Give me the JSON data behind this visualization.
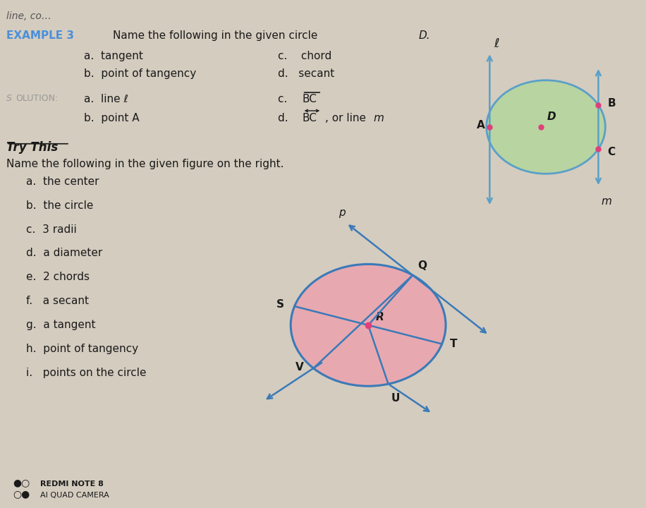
{
  "bg_color": "#d4ccbf",
  "example_color": "#4a90d9",
  "solution_color": "#999999",
  "circle1_fill": "#b8d4a0",
  "circle1_edge": "#5aa0c8",
  "circle2_fill": "#e8a8b0",
  "circle2_edge": "#3a7ab8",
  "line_color": "#5aa0c8",
  "secant_color": "#3a7ab8",
  "try_items": [
    "a.  the center",
    "b.  the circle",
    "c.  3 radii",
    "d.  a diameter",
    "e.  2 chords",
    "f.   a secant",
    "g.  a tangent",
    "h.  point of tangency"
  ]
}
